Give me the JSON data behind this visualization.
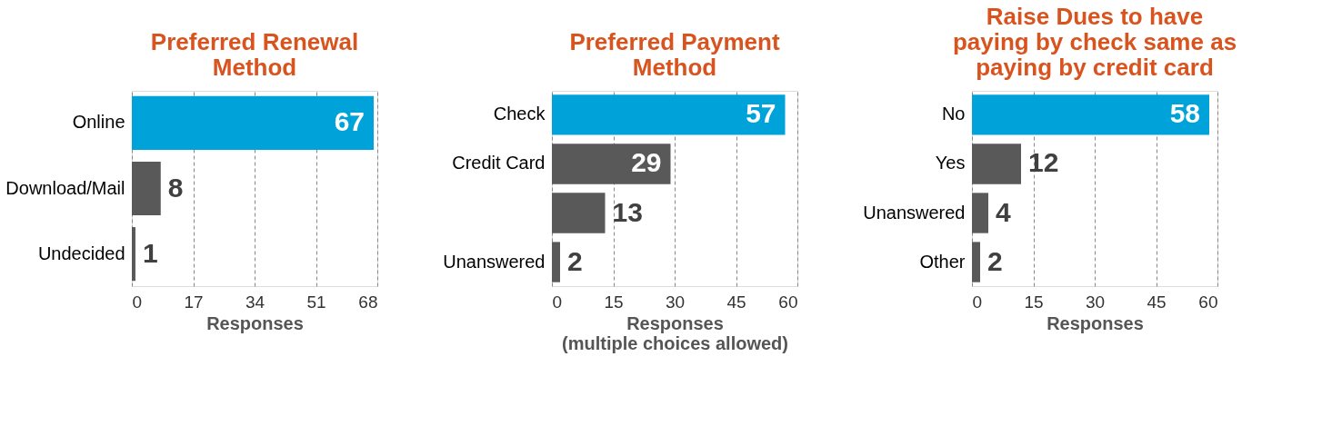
{
  "chart_data": [
    {
      "type": "bar",
      "orientation": "horizontal",
      "title": "Preferred Renewal\nMethod",
      "categories": [
        "Online",
        "Download/Mail",
        "Undecided"
      ],
      "values": [
        67,
        8,
        1
      ],
      "colors": [
        "#00a3d9",
        "#595959",
        "#595959"
      ],
      "xlim": [
        0,
        68
      ],
      "xticks": [
        0,
        17,
        34,
        51,
        68
      ],
      "xlabel": "Responses",
      "grid": "x",
      "data_labels": true
    },
    {
      "type": "bar",
      "orientation": "horizontal",
      "title": "Preferred Payment\nMethod",
      "categories": [
        "Check",
        "Credit Card",
        null,
        "Unanswered"
      ],
      "values": [
        57,
        29,
        13,
        2
      ],
      "colors": [
        "#00a3d9",
        "#595959",
        "#595959",
        "#595959"
      ],
      "xlim": [
        0,
        60
      ],
      "xticks": [
        0,
        15,
        30,
        45,
        60
      ],
      "xlabel": "Responses\n(multiple choices allowed)",
      "grid": "x",
      "data_labels": true
    },
    {
      "type": "bar",
      "orientation": "horizontal",
      "title": "Raise Dues to have\npaying by check same as\npaying by credit card",
      "categories": [
        "No",
        "Yes",
        "Unanswered",
        "Other"
      ],
      "values": [
        58,
        12,
        4,
        2
      ],
      "colors": [
        "#00a3d9",
        "#595959",
        "#595959",
        "#595959"
      ],
      "xlim": [
        0,
        60
      ],
      "xticks": [
        0,
        15,
        30,
        45,
        60
      ],
      "xlabel": "Responses",
      "grid": "x",
      "data_labels": true
    }
  ]
}
